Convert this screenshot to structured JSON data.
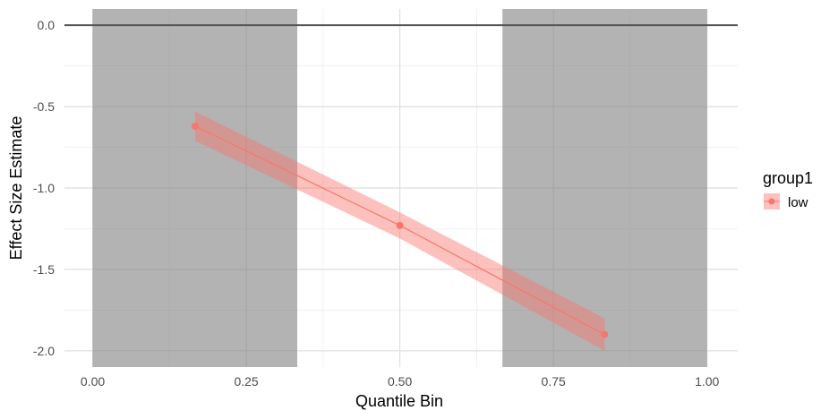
{
  "chart_data": {
    "type": "line",
    "xlabel": "Quantile Bin",
    "ylabel": "Effect Size Estimate",
    "xlim": [
      -0.046,
      1.05
    ],
    "ylim": [
      -2.1,
      0.1
    ],
    "x_ticks": [
      0.0,
      0.25,
      0.5,
      0.75,
      1.0
    ],
    "x_tick_labels": [
      "0.00",
      "0.25",
      "0.50",
      "0.75",
      "1.00"
    ],
    "y_ticks": [
      0.0,
      -0.5,
      -1.0,
      -1.5,
      -2.0
    ],
    "y_tick_labels": [
      "0.0",
      "-0.5",
      "-1.0",
      "-1.5",
      "-2.0"
    ],
    "grid": true,
    "reference_line": {
      "y": 0.0
    },
    "shaded_regions": [
      {
        "x_start": 0.0,
        "x_end": 0.333
      },
      {
        "x_start": 0.667,
        "x_end": 1.0
      }
    ],
    "series": [
      {
        "name": "low",
        "color": "#F8766D",
        "x": [
          0.1667,
          0.5,
          0.8333
        ],
        "y": [
          -0.62,
          -1.23,
          -1.9
        ],
        "ci_lower": [
          -0.71,
          -1.31,
          -2.0
        ],
        "ci_upper": [
          -0.53,
          -1.15,
          -1.8
        ]
      }
    ],
    "legend": {
      "title": "group1",
      "position": "right"
    }
  }
}
